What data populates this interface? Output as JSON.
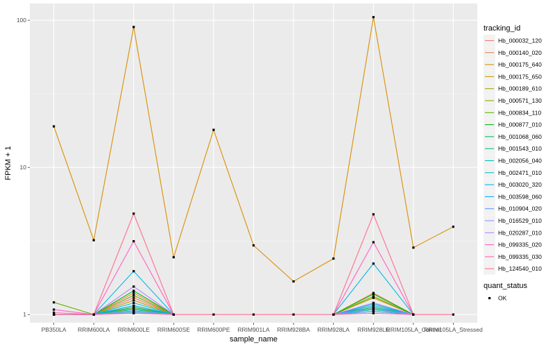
{
  "chart_data": {
    "type": "line",
    "xlabel": "sample_name",
    "ylabel": "FPKM + 1",
    "y_scale": "log10",
    "ylim": [
      0.88,
      130
    ],
    "grid": true,
    "legend_placement": "right",
    "y_ticks": [
      1,
      10,
      100
    ],
    "y_tick_labels": [
      "1",
      "10",
      "100"
    ],
    "categories": [
      "PB350LA",
      "RRIM600LA",
      "RRIM600LE",
      "RRIM600SE",
      "RRIM600PE",
      "RRIM901LA",
      "RRIM928BA",
      "RRIM928LA",
      "RRIM928LE",
      "RRIM105LA_Control",
      "RRIM105LA_Stressed"
    ],
    "color_legend_title": "tracking_id",
    "shape_legend_title": "quant_status",
    "shape_legend_items": [
      "OK"
    ],
    "series": [
      {
        "name": "Hb_000032_120",
        "color": "#F8766D",
        "values": [
          1.0,
          1.0,
          1.3,
          1.0,
          null,
          null,
          null,
          1.0,
          1.3,
          1.0,
          null
        ]
      },
      {
        "name": "Hb_000140_020",
        "color": "#EC8239",
        "values": [
          1.0,
          1.0,
          1.4,
          1.0,
          null,
          null,
          null,
          1.0,
          1.4,
          1.0,
          null
        ]
      },
      {
        "name": "Hb_000175_640",
        "color": "#DB8E00",
        "values": [
          19.0,
          3.2,
          90.0,
          2.45,
          18.0,
          2.95,
          1.68,
          2.4,
          105.0,
          2.85,
          3.95
        ]
      },
      {
        "name": "Hb_000175_650",
        "color": "#C79800",
        "values": [
          1.0,
          1.0,
          1.25,
          1.0,
          null,
          null,
          null,
          1.0,
          1.3,
          1.0,
          null
        ]
      },
      {
        "name": "Hb_000189_610",
        "color": "#AEA200",
        "values": [
          1.0,
          1.0,
          1.15,
          1.0,
          null,
          null,
          null,
          1.0,
          1.15,
          1.0,
          null
        ]
      },
      {
        "name": "Hb_000571_130",
        "color": "#8FAA00",
        "values": [
          1.0,
          1.0,
          1.1,
          1.0,
          null,
          null,
          null,
          1.0,
          1.1,
          1.0,
          null
        ]
      },
      {
        "name": "Hb_000834_110",
        "color": "#64B200",
        "values": [
          1.21,
          1.0,
          1.35,
          1.0,
          null,
          null,
          null,
          1.0,
          1.33,
          1.0,
          null
        ]
      },
      {
        "name": "Hb_000877_010",
        "color": "#00B81B",
        "values": [
          1.0,
          1.0,
          1.45,
          1.0,
          null,
          null,
          null,
          1.0,
          1.38,
          1.0,
          null
        ]
      },
      {
        "name": "Hb_001068_060",
        "color": "#00BD5C",
        "values": [
          1.0,
          1.0,
          1.12,
          1.0,
          null,
          null,
          null,
          1.0,
          1.12,
          1.0,
          null
        ]
      },
      {
        "name": "Hb_001543_010",
        "color": "#00C08E",
        "values": [
          1.0,
          1.0,
          1.05,
          1.0,
          null,
          null,
          null,
          1.0,
          1.05,
          1.0,
          null
        ]
      },
      {
        "name": "Hb_002056_040",
        "color": "#00C1B2",
        "values": [
          1.0,
          1.0,
          1.08,
          1.0,
          null,
          null,
          null,
          1.0,
          1.08,
          1.0,
          null
        ]
      },
      {
        "name": "Hb_002471_010",
        "color": "#00BFD0",
        "values": [
          1.0,
          1.0,
          1.2,
          1.0,
          null,
          null,
          null,
          1.0,
          1.18,
          1.0,
          null
        ]
      },
      {
        "name": "Hb_003020_320",
        "color": "#00B8E7",
        "values": [
          1.0,
          1.0,
          1.97,
          1.0,
          null,
          null,
          null,
          1.0,
          2.22,
          1.0,
          null
        ]
      },
      {
        "name": "Hb_003598_060",
        "color": "#00ACFC",
        "values": [
          1.0,
          1.0,
          1.15,
          1.0,
          null,
          null,
          null,
          1.0,
          1.15,
          1.0,
          null
        ]
      },
      {
        "name": "Hb_010904_020",
        "color": "#619CFF",
        "values": [
          1.0,
          1.0,
          1.03,
          1.0,
          null,
          null,
          null,
          1.0,
          1.05,
          1.0,
          null
        ]
      },
      {
        "name": "Hb_016529_010",
        "color": "#9590FF",
        "values": [
          1.0,
          1.0,
          1.06,
          1.0,
          null,
          null,
          null,
          1.0,
          1.1,
          1.0,
          null
        ]
      },
      {
        "name": "Hb_020287_010",
        "color": "#B983FF",
        "values": [
          1.0,
          1.0,
          1.55,
          1.0,
          null,
          null,
          null,
          1.0,
          1.2,
          1.0,
          null
        ]
      },
      {
        "name": "Hb_099335_020",
        "color": "#FF61C3",
        "values": [
          1.08,
          1.0,
          3.15,
          1.0,
          null,
          null,
          null,
          1.0,
          3.1,
          1.0,
          null
        ]
      },
      {
        "name": "Hb_099335_030",
        "color": "#FF67A4",
        "values": [
          1.03,
          1.0,
          1.02,
          1.0,
          null,
          null,
          null,
          1.0,
          1.02,
          1.0,
          null
        ]
      },
      {
        "name": "Hb_124540_010",
        "color": "#FF6C90",
        "values": [
          1.0,
          1.0,
          4.85,
          1.0,
          1.0,
          1.0,
          1.0,
          1.0,
          4.8,
          1.0,
          1.0
        ]
      }
    ]
  }
}
